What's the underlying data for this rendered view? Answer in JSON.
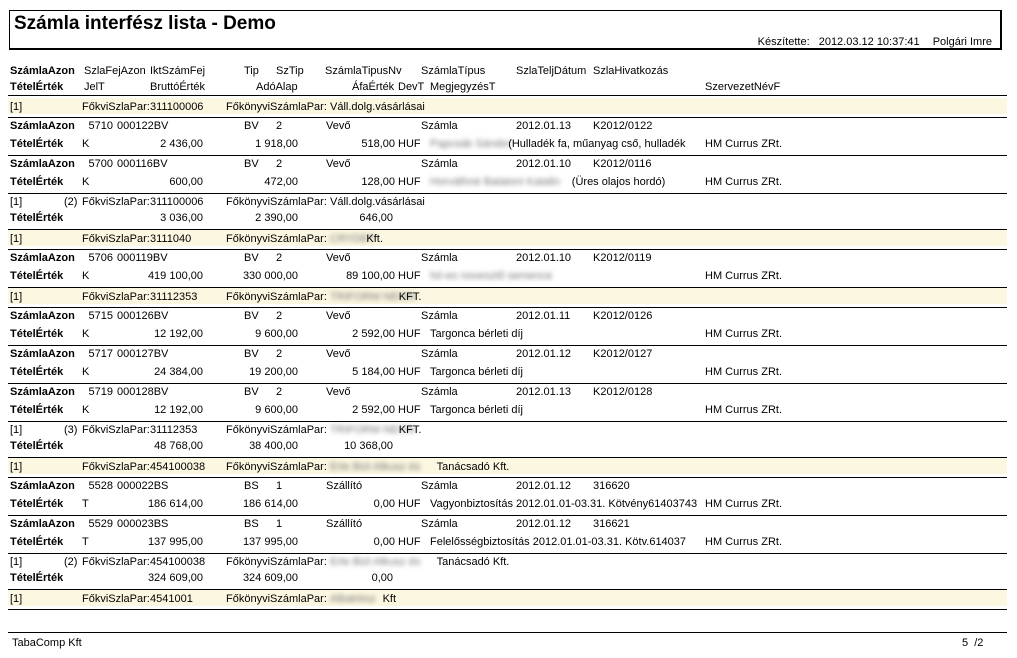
{
  "header": {
    "title": "Számla interfész lista - Demo",
    "made_by_label": "Készítette:",
    "timestamp": "2012.03.12 10:37:41",
    "author": "Polgári Imre"
  },
  "columns": {
    "row1": [
      "SzámlaAzon",
      "SzlaFejAzon",
      "IktSzámFej",
      "Tip",
      "SzTip",
      "SzámlaTipusNv",
      "SzámlaTípus",
      "SzlaTeljDátum",
      "SzlaHivatkozás"
    ],
    "row2": [
      "TételÉrték",
      "JelT",
      "BruttóÉrték",
      "AdóAlap",
      "ÁfaÉrték",
      "DevT",
      "MegjegyzésT",
      "SzervezetNévF"
    ]
  },
  "labels": {
    "szamlaazon": "SzámlaAzon",
    "tetelertek": "TételÉrték",
    "fokvi": "FőkviSzlaPar:",
    "fokonyvi": "FőkönyviSzámlaPar:",
    "bracket1": "[1]"
  },
  "rows": [
    {
      "type": "group",
      "prefix": "[1]",
      "count": "",
      "account": "311100006",
      "partner": "Váll.dolg.vásárlásai",
      "blur": ""
    },
    {
      "type": "inv",
      "id": "5710",
      "ikt": "000122BV",
      "tip": "BV",
      "sztip": "2",
      "tnev": "Vevő",
      "ttipus": "Számla",
      "date": "2012.01.13",
      "ref": "K2012/0122",
      "jel": "K",
      "brutto": "2 436,00",
      "ado": "1 918,00",
      "afa": "518,00",
      "dev": "HUF",
      "blur": "Papcsák Sándor",
      "note": "(Hulladék fa, műanyag cső, hulladék",
      "org": "HM Currus ZRt."
    },
    {
      "type": "inv",
      "id": "5700",
      "ikt": "000116BV",
      "tip": "BV",
      "sztip": "2",
      "tnev": "Vevő",
      "ttipus": "Számla",
      "date": "2012.01.10",
      "ref": "K2012/0116",
      "jel": "K",
      "brutto": "600,00",
      "ado": "472,00",
      "afa": "128,00",
      "dev": "HUF",
      "blur": "Horváthné Balatoni Katalin",
      "note": "(Üres olajos hordó)",
      "org": "HM Currus ZRt."
    },
    {
      "type": "sum",
      "prefix": "[1]",
      "count": "(2)",
      "account": "311100006",
      "partner": "Váll.dolg.vásárlásai",
      "blur": "",
      "brutto": "3 036,00",
      "ado": "2 390,00",
      "afa": "646,00"
    },
    {
      "type": "group",
      "prefix": "[1]",
      "count": "",
      "account": "3111040",
      "partner": "Kft.",
      "blur": "CRYDET"
    },
    {
      "type": "inv",
      "id": "5706",
      "ikt": "000119BV",
      "tip": "BV",
      "sztip": "2",
      "tnev": "Vevő",
      "ttipus": "Számla",
      "date": "2012.01.10",
      "ref": "K2012/0119",
      "jel": "K",
      "brutto": "419 100,00",
      "ado": "330 000,00",
      "afa": "89 100,00",
      "dev": "HUF",
      "blur": "hó-es novesztő semence",
      "note": "",
      "org": "HM Currus ZRt."
    },
    {
      "type": "group",
      "prefix": "[1]",
      "count": "",
      "account": "31112353",
      "partner": "KFT.",
      "blur": "TRIFORM NEON"
    },
    {
      "type": "inv",
      "id": "5715",
      "ikt": "000126BV",
      "tip": "BV",
      "sztip": "2",
      "tnev": "Vevő",
      "ttipus": "Számla",
      "date": "2012.01.11",
      "ref": "K2012/0126",
      "jel": "K",
      "brutto": "12 192,00",
      "ado": "9 600,00",
      "afa": "2 592,00",
      "dev": "HUF",
      "blur": "",
      "note": "Targonca bérleti díj",
      "org": "HM Currus ZRt."
    },
    {
      "type": "inv",
      "id": "5717",
      "ikt": "000127BV",
      "tip": "BV",
      "sztip": "2",
      "tnev": "Vevő",
      "ttipus": "Számla",
      "date": "2012.01.12",
      "ref": "K2012/0127",
      "jel": "K",
      "brutto": "24 384,00",
      "ado": "19 200,00",
      "afa": "5 184,00",
      "dev": "HUF",
      "blur": "",
      "note": "Targonca bérleti díj",
      "org": "HM Currus ZRt."
    },
    {
      "type": "inv",
      "id": "5719",
      "ikt": "000128BV",
      "tip": "BV",
      "sztip": "2",
      "tnev": "Vevő",
      "ttipus": "Számla",
      "date": "2012.01.13",
      "ref": "K2012/0128",
      "jel": "K",
      "brutto": "12 192,00",
      "ado": "9 600,00",
      "afa": "2 592,00",
      "dev": "HUF",
      "blur": "",
      "note": "Targonca bérleti díj",
      "org": "HM Currus ZRt."
    },
    {
      "type": "sum",
      "prefix": "[1]",
      "count": "(3)",
      "account": "31112353",
      "partner": "KFT.",
      "blur": "TRIFORM NEON",
      "brutto": "48 768,00",
      "ado": "38 400,00",
      "afa": "10 368,00"
    },
    {
      "type": "group",
      "prefix": "[1]",
      "count": "",
      "account": "454100038",
      "partner": "Tanácsadó Kft.",
      "blur": "Erle Bizt Alkusz és"
    },
    {
      "type": "inv",
      "id": "5528",
      "ikt": "000022BS",
      "tip": "BS",
      "sztip": "1",
      "tnev": "Szállító",
      "ttipus": "Számla",
      "date": "2012.01.12",
      "ref": "316620",
      "jel": "T",
      "brutto": "186 614,00",
      "ado": "186 614,00",
      "afa": "0,00",
      "dev": "HUF",
      "blur": "",
      "note": "Vagyonbiztosítás 2012.01.01-03.31. Kötvény61403743",
      "org": "HM Currus ZRt."
    },
    {
      "type": "inv",
      "id": "5529",
      "ikt": "000023BS",
      "tip": "BS",
      "sztip": "1",
      "tnev": "Szállító",
      "ttipus": "Számla",
      "date": "2012.01.12",
      "ref": "316621",
      "jel": "T",
      "brutto": "137 995,00",
      "ado": "137 995,00",
      "afa": "0,00",
      "dev": "HUF",
      "blur": "",
      "note": "Felelősségbiztosítás 2012.01.01-03.31. Kötv.614037",
      "org": "HM Currus ZRt."
    },
    {
      "type": "sum",
      "prefix": "[1]",
      "count": "(2)",
      "account": "454100038",
      "partner": "Tanácsadó Kft.",
      "blur": "Erle Bizt Alkusz és",
      "brutto": "324 609,00",
      "ado": "324 609,00",
      "afa": "0,00"
    },
    {
      "type": "group",
      "prefix": "[1]",
      "count": "",
      "account": "4541001",
      "partner": "Kft",
      "blur": "Albatrész"
    }
  ],
  "footer": {
    "company": "TabaComp Kft",
    "page": "5",
    "pages": "/2"
  }
}
